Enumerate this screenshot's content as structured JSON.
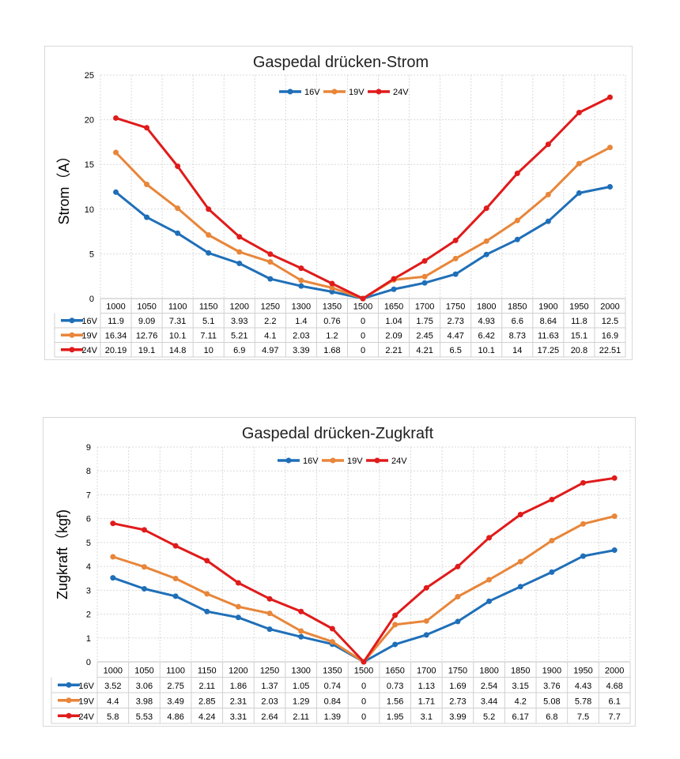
{
  "chart_data": [
    {
      "type": "line",
      "title": "Gaspedal drücken-Strom",
      "ylabel": "Strom（A）",
      "xlabel": "",
      "ylim": [
        0,
        25
      ],
      "yticks": [
        0,
        5,
        10,
        15,
        20,
        25
      ],
      "categories": [
        "1000",
        "1050",
        "1100",
        "1150",
        "1200",
        "1250",
        "1300",
        "1350",
        "1500",
        "1650",
        "1700",
        "1750",
        "1800",
        "1850",
        "1900",
        "1950",
        "2000"
      ],
      "grid": true,
      "legend": "top-center",
      "data_table": true,
      "series": [
        {
          "name": "16V",
          "color": "#1f6fb8",
          "values": [
            11.9,
            9.09,
            7.31,
            5.1,
            3.93,
            2.2,
            1.4,
            0.76,
            0,
            1.04,
            1.75,
            2.73,
            4.93,
            6.6,
            8.64,
            11.8,
            12.5
          ]
        },
        {
          "name": "19V",
          "color": "#e8863a",
          "values": [
            16.34,
            12.76,
            10.1,
            7.11,
            5.21,
            4.1,
            2.03,
            1.2,
            0,
            2.09,
            2.45,
            4.47,
            6.42,
            8.73,
            11.63,
            15.1,
            16.9
          ]
        },
        {
          "name": "24V",
          "color": "#e01b1b",
          "values": [
            20.19,
            19.1,
            14.8,
            10,
            6.9,
            4.97,
            3.39,
            1.68,
            0,
            2.21,
            4.21,
            6.5,
            10.1,
            14,
            17.25,
            20.8,
            22.51
          ]
        }
      ]
    },
    {
      "type": "line",
      "title": "Gaspedal drücken-Zugkraft",
      "ylabel": "Zugkraft（kgf)",
      "xlabel": "",
      "ylim": [
        0,
        9
      ],
      "yticks": [
        0,
        1,
        2,
        3,
        4,
        5,
        6,
        7,
        8,
        9
      ],
      "categories": [
        "1000",
        "1050",
        "1100",
        "1150",
        "1200",
        "1250",
        "1300",
        "1350",
        "1500",
        "1650",
        "1700",
        "1750",
        "1800",
        "1850",
        "1900",
        "1950",
        "2000"
      ],
      "grid": true,
      "legend": "top-center",
      "data_table": true,
      "series": [
        {
          "name": "16V",
          "color": "#1f6fb8",
          "values": [
            3.52,
            3.06,
            2.75,
            2.11,
            1.86,
            1.37,
            1.05,
            0.74,
            0,
            0.73,
            1.13,
            1.69,
            2.54,
            3.15,
            3.76,
            4.43,
            4.68
          ]
        },
        {
          "name": "19V",
          "color": "#e8863a",
          "values": [
            4.4,
            3.98,
            3.49,
            2.85,
            2.31,
            2.03,
            1.29,
            0.84,
            0,
            1.56,
            1.71,
            2.73,
            3.44,
            4.2,
            5.08,
            5.78,
            6.1
          ]
        },
        {
          "name": "24V",
          "color": "#e01b1b",
          "values": [
            5.8,
            5.53,
            4.86,
            4.24,
            3.31,
            2.64,
            2.11,
            1.39,
            0,
            1.95,
            3.1,
            3.99,
            5.2,
            6.17,
            6.8,
            7.5,
            7.7
          ]
        }
      ]
    }
  ]
}
